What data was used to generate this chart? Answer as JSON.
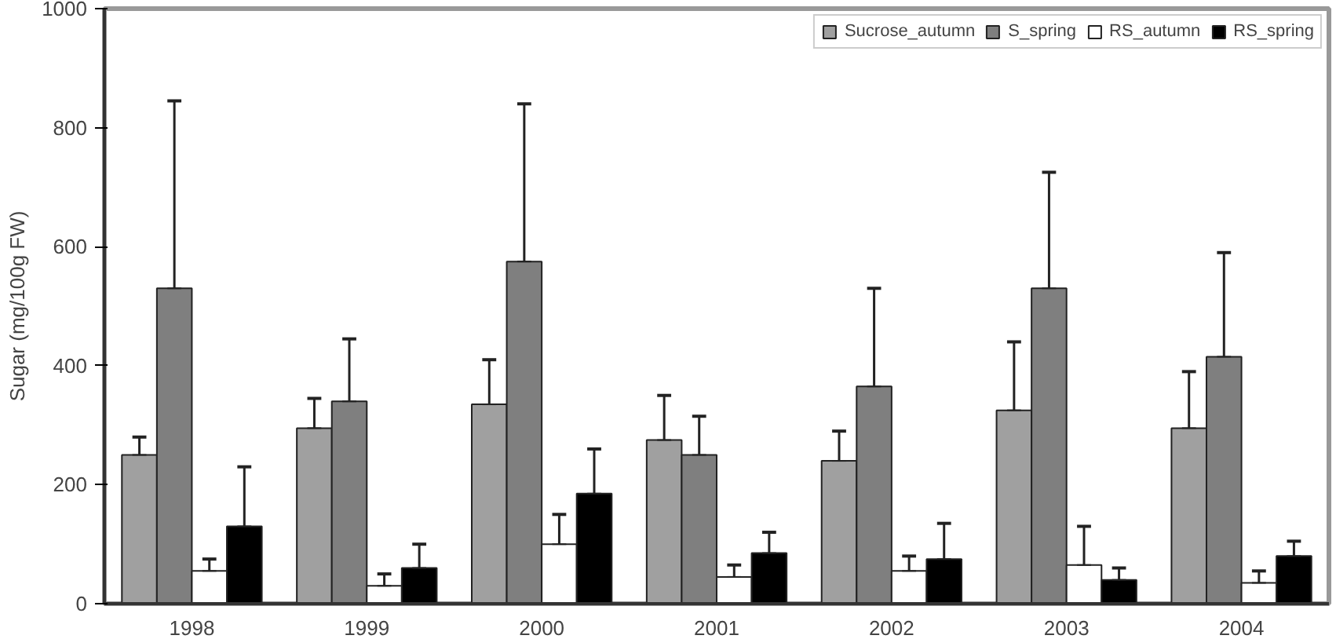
{
  "chart_data": {
    "type": "bar",
    "ylabel": "Sugar (mg/100g FW)",
    "categories": [
      "1998",
      "1999",
      "2000",
      "2001",
      "2002",
      "2003",
      "2004"
    ],
    "series": [
      {
        "name": "Sucrose_autumn",
        "color": "#a0a0a0",
        "values": [
          250,
          295,
          335,
          275,
          240,
          325,
          295
        ],
        "errors": [
          [
            250,
            280
          ],
          [
            295,
            345
          ],
          [
            335,
            410
          ],
          [
            275,
            350
          ],
          [
            240,
            290
          ],
          [
            325,
            440
          ],
          [
            295,
            390
          ]
        ]
      },
      {
        "name": "S_spring",
        "color": "#7f7f7f",
        "values": [
          530,
          340,
          575,
          250,
          365,
          530,
          415
        ],
        "errors": [
          [
            530,
            845
          ],
          [
            340,
            445
          ],
          [
            575,
            840
          ],
          [
            250,
            315
          ],
          [
            365,
            530
          ],
          [
            530,
            725
          ],
          [
            415,
            590
          ]
        ]
      },
      {
        "name": "RS_autumn",
        "color": "#ffffff",
        "values": [
          55,
          30,
          100,
          45,
          55,
          65,
          35
        ],
        "errors": [
          [
            55,
            75
          ],
          [
            30,
            50
          ],
          [
            100,
            150
          ],
          [
            45,
            65
          ],
          [
            55,
            80
          ],
          [
            65,
            130
          ],
          [
            35,
            55
          ]
        ]
      },
      {
        "name": "RS_spring",
        "color": "#000000",
        "values": [
          130,
          60,
          185,
          85,
          75,
          40,
          80
        ],
        "errors": [
          [
            130,
            230
          ],
          [
            60,
            100
          ],
          [
            185,
            260
          ],
          [
            85,
            120
          ],
          [
            75,
            135
          ],
          [
            40,
            60
          ],
          [
            80,
            105
          ]
        ]
      }
    ],
    "ylim": [
      0,
      1000
    ],
    "yticks": [
      0,
      200,
      400,
      600,
      800,
      1000
    ],
    "grid": false,
    "legend": "top right"
  }
}
